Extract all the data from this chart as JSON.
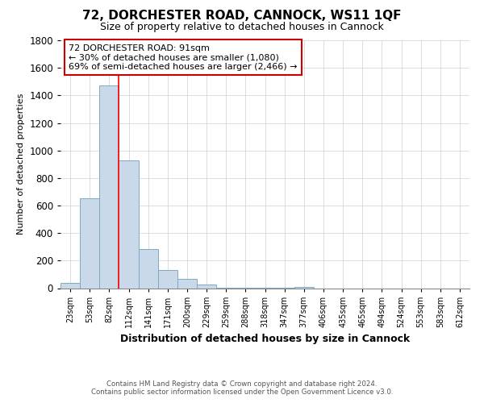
{
  "title": "72, DORCHESTER ROAD, CANNOCK, WS11 1QF",
  "subtitle": "Size of property relative to detached houses in Cannock",
  "xlabel": "Distribution of detached houses by size in Cannock",
  "ylabel": "Number of detached properties",
  "footnote1": "Contains HM Land Registry data © Crown copyright and database right 2024.",
  "footnote2": "Contains public sector information licensed under the Open Government Licence v3.0.",
  "bar_labels": [
    "23sqm",
    "53sqm",
    "82sqm",
    "112sqm",
    "141sqm",
    "171sqm",
    "200sqm",
    "229sqm",
    "259sqm",
    "288sqm",
    "318sqm",
    "347sqm",
    "377sqm",
    "406sqm",
    "435sqm",
    "465sqm",
    "494sqm",
    "524sqm",
    "553sqm",
    "583sqm",
    "612sqm"
  ],
  "bar_values": [
    40,
    650,
    1470,
    930,
    285,
    130,
    65,
    25,
    5,
    3,
    2,
    2,
    10,
    0,
    0,
    0,
    0,
    0,
    0,
    0,
    0
  ],
  "bar_color": "#c9d9ea",
  "bar_edge_color": "#7aaac8",
  "red_line_index": 2,
  "annotation_title": "72 DORCHESTER ROAD: 91sqm",
  "annotation_line1": "← 30% of detached houses are smaller (1,080)",
  "annotation_line2": "69% of semi-detached houses are larger (2,466) →",
  "annotation_box_color": "#ffffff",
  "annotation_box_edge_color": "#cc0000",
  "ylim": [
    0,
    1800
  ],
  "yticks": [
    0,
    200,
    400,
    600,
    800,
    1000,
    1200,
    1400,
    1600,
    1800
  ],
  "background_color": "#ffffff",
  "grid_color": "#d0d0d0",
  "title_fontsize": 11,
  "subtitle_fontsize": 9
}
